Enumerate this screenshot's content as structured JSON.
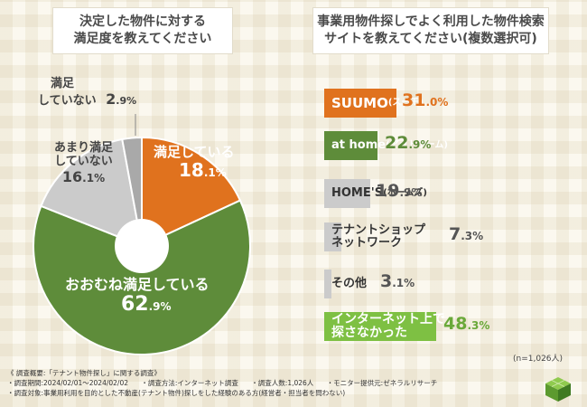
{
  "pie_title": {
    "line1": "決定した物件に対する",
    "line2": "満足度を教えてください"
  },
  "bar_title": {
    "line1": "事業用物件探しでよく利用した物件検索",
    "line2": "サイトを教えてください(複数選択可)"
  },
  "colors": {
    "orange": "#e0721e",
    "green": "#5e8c3a",
    "gray": "#cbcbcb",
    "darkgray": "#a9a9a9",
    "lightgreen": "#7ec043"
  },
  "chart_data": [
    {
      "type": "pie",
      "title": "決定した物件に対する満足度を教えてください",
      "start_angle": 0,
      "slices": [
        {
          "label": "満足している",
          "value": 18.1,
          "color": "#e0721e",
          "int": "18",
          "dec": ".1%"
        },
        {
          "label": "おおむね満足している",
          "value": 62.9,
          "color": "#5e8c3a",
          "int": "62",
          "dec": ".9%"
        },
        {
          "label": "あまり満足していない",
          "line1": "あまり満足",
          "line2": "していない",
          "value": 16.1,
          "color": "#cbcbcb",
          "int": "16",
          "dec": ".1%"
        },
        {
          "label": "満足していない",
          "line1": "満足",
          "line2": "していない",
          "value": 2.9,
          "color": "#a9a9a9",
          "int": "2",
          "dec": ".9%"
        }
      ]
    },
    {
      "type": "bar",
      "orientation": "horizontal",
      "title": "事業用物件探しでよく利用した物件検索サイトを教えてください(複数選択可)",
      "xlim": [
        0,
        100
      ],
      "bars": [
        {
          "label_main": "SUUMO",
          "label_small": "(スーモ)",
          "value": 31.0,
          "int": "31",
          "dec": ".0%",
          "color": "#e0721e"
        },
        {
          "label_main": "at home",
          "label_small": "(アットホーム)",
          "value": 22.9,
          "int": "22",
          "dec": ".9%",
          "color": "#5e8c3a"
        },
        {
          "label_main": "HOME'S",
          "label_small": "(ホームズ)",
          "value": 19.9,
          "int": "19",
          "dec": ".9%",
          "color": "#cbcbcb"
        },
        {
          "label_main": "テナントショップ",
          "label_line2": "ネットワーク",
          "value": 7.3,
          "int": "7",
          "dec": ".3%",
          "color": "#cbcbcb"
        },
        {
          "label_main": "その他",
          "value": 3.1,
          "int": "3",
          "dec": ".1%",
          "color": "#cbcbcb"
        },
        {
          "label_main": "インターネット上で",
          "label_line2": "探さなかった",
          "value": 48.3,
          "int": "48",
          "dec": ".3%",
          "color": "#7ec043"
        }
      ],
      "note": "(n=1,026人)"
    }
  ],
  "footer": {
    "summary": "《 調査概要:「テナント物件探し」に関する調査》",
    "period": "・調査期間:2024/02/01～2024/02/02",
    "method": "・調査方法:インターネット調査",
    "count": "・調査人数:1,026人",
    "provider": "・モニター提供元:ゼネラルリサーチ",
    "target": "・調査対象:事業用利用を目的とした不動産(テナント物件)探しをした経験のある方(経営者・担当者を問わない)"
  }
}
